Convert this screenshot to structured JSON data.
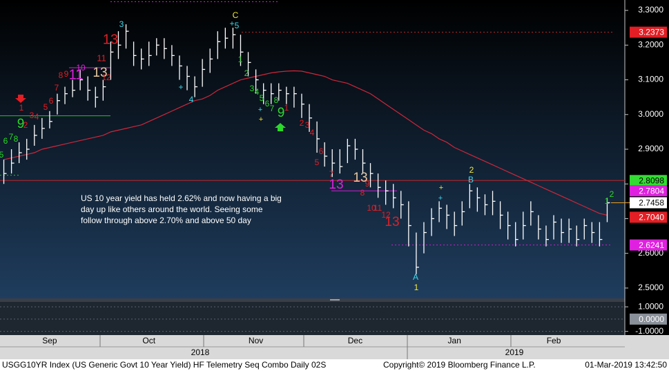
{
  "chart_data": [
    {
      "type": "ohlc",
      "categories": [
        null,
        null,
        null,
        null,
        null,
        null,
        "Sep",
        null,
        null,
        null,
        null,
        null,
        null,
        null,
        null,
        null,
        null,
        null,
        null,
        "Oct",
        null,
        null,
        null,
        null,
        null,
        null,
        null,
        null,
        null,
        null,
        null,
        null,
        null,
        "Nov",
        null,
        null,
        null,
        null,
        null,
        null,
        null,
        null,
        null,
        null,
        null,
        null,
        "Dec",
        null,
        null,
        null,
        null,
        null,
        null,
        null,
        null,
        null,
        null,
        null,
        null,
        "Jan",
        null,
        null,
        null,
        null,
        null,
        null,
        null,
        null,
        null,
        null,
        null,
        null,
        "Feb",
        null,
        null,
        null,
        null,
        null,
        null,
        null
      ],
      "year_labels": [
        "2018",
        "2019"
      ],
      "color": "#ffffff",
      "high": [
        2.87,
        2.9,
        2.92,
        2.93,
        2.97,
        2.99,
        3.01,
        3.06,
        3.08,
        3.1,
        3.13,
        3.11,
        3.08,
        3.1,
        3.21,
        3.24,
        3.26,
        3.21,
        3.19,
        3.21,
        3.22,
        3.22,
        3.2,
        3.17,
        3.14,
        3.11,
        3.16,
        3.19,
        3.24,
        3.25,
        3.25,
        3.23,
        3.18,
        3.13,
        3.09,
        3.09,
        3.09,
        3.08,
        3.08,
        3.06,
        3.03,
        2.98,
        2.92,
        2.9,
        2.9,
        2.93,
        2.93,
        2.9,
        2.86,
        2.83,
        2.81,
        2.8,
        2.78,
        2.75,
        2.66,
        2.69,
        2.73,
        2.75,
        2.74,
        2.72,
        2.75,
        2.8,
        2.79,
        2.77,
        2.78,
        2.75,
        2.72,
        2.69,
        2.72,
        2.75,
        2.71,
        2.68,
        2.71,
        2.7,
        2.7,
        2.68,
        2.7,
        2.69,
        2.69,
        2.76
      ],
      "low": [
        2.8,
        2.83,
        2.86,
        2.87,
        2.91,
        2.93,
        2.96,
        3.0,
        3.03,
        3.05,
        3.07,
        3.04,
        3.02,
        3.04,
        3.1,
        3.16,
        3.19,
        3.14,
        3.13,
        3.14,
        3.17,
        3.16,
        3.14,
        3.1,
        3.07,
        3.05,
        3.08,
        3.12,
        3.16,
        3.19,
        3.19,
        3.14,
        3.11,
        3.06,
        3.03,
        3.03,
        3.04,
        3.03,
        3.02,
        2.99,
        2.95,
        2.89,
        2.85,
        2.82,
        2.83,
        2.86,
        2.87,
        2.83,
        2.79,
        2.76,
        2.74,
        2.73,
        2.7,
        2.62,
        2.54,
        2.6,
        2.65,
        2.69,
        2.67,
        2.65,
        2.68,
        2.73,
        2.72,
        2.71,
        2.71,
        2.67,
        2.64,
        2.62,
        2.64,
        2.68,
        2.64,
        2.62,
        2.64,
        2.63,
        2.63,
        2.62,
        2.64,
        2.63,
        2.62,
        2.69
      ],
      "close": [
        2.83,
        2.86,
        2.89,
        2.9,
        2.94,
        2.96,
        2.98,
        3.04,
        3.06,
        3.07,
        3.1,
        3.07,
        3.05,
        3.08,
        3.18,
        3.2,
        3.24,
        3.17,
        3.16,
        3.17,
        3.2,
        3.19,
        3.17,
        3.14,
        3.11,
        3.08,
        3.13,
        3.16,
        3.21,
        3.22,
        3.23,
        3.18,
        3.15,
        3.1,
        3.07,
        3.06,
        3.07,
        3.06,
        3.06,
        3.03,
        2.99,
        2.93,
        2.88,
        2.86,
        2.85,
        2.91,
        2.9,
        2.86,
        2.83,
        2.79,
        2.78,
        2.76,
        2.74,
        2.68,
        2.56,
        2.66,
        2.7,
        2.73,
        2.71,
        2.68,
        2.72,
        2.78,
        2.76,
        2.74,
        2.75,
        2.71,
        2.68,
        2.64,
        2.68,
        2.72,
        2.67,
        2.64,
        2.69,
        2.66,
        2.67,
        2.64,
        2.68,
        2.66,
        2.64,
        2.7458
      ],
      "moving_average": {
        "color": "#d0263a",
        "values": [
          2.87,
          2.875,
          2.88,
          2.885,
          2.89,
          2.9,
          2.905,
          2.91,
          2.915,
          2.92,
          2.925,
          2.93,
          2.935,
          2.94,
          2.95,
          2.955,
          2.96,
          2.965,
          2.97,
          2.98,
          2.99,
          3.0,
          3.01,
          3.02,
          3.03,
          3.04,
          3.045,
          3.055,
          3.07,
          3.08,
          3.09,
          3.1,
          3.105,
          3.11,
          3.115,
          3.12,
          3.123,
          3.125,
          3.126,
          3.125,
          3.12,
          3.115,
          3.11,
          3.1,
          3.095,
          3.09,
          3.08,
          3.07,
          3.06,
          3.045,
          3.03,
          3.015,
          3.0,
          2.985,
          2.97,
          2.955,
          2.945,
          2.93,
          2.92,
          2.905,
          2.895,
          2.885,
          2.875,
          2.865,
          2.855,
          2.845,
          2.835,
          2.825,
          2.815,
          2.805,
          2.795,
          2.785,
          2.775,
          2.765,
          2.755,
          2.745,
          2.735,
          2.725,
          2.715,
          2.71
        ]
      },
      "ylim": [
        2.47,
        3.33
      ],
      "yticks": [
        {
          "value": 3.3,
          "label": "3.3000"
        },
        {
          "value": 3.2,
          "label": "3.2000"
        },
        {
          "value": 3.1,
          "label": "3.1000"
        },
        {
          "value": 3.0,
          "label": "3.0000"
        },
        {
          "value": 2.9,
          "label": "2.9000"
        },
        {
          "value": 2.8,
          "label": "2.8000"
        },
        {
          "value": 2.7,
          "label": "2.7000"
        },
        {
          "value": 2.6,
          "label": "2.6000"
        },
        {
          "value": 2.5,
          "label": "2.5000"
        }
      ],
      "grid": false,
      "levels": [
        {
          "value": 3.2373,
          "color": "#c0282d",
          "style": "dotted"
        },
        {
          "value": 2.8098,
          "color": "#c0282d",
          "style": "solid"
        },
        {
          "value": 2.6241,
          "color": "#d21fd2",
          "style": "dotted"
        },
        {
          "value": 2.9963,
          "color": "#27c227",
          "style": "solid"
        },
        {
          "value": 3.135,
          "color": "#d21fd2",
          "style": "solid"
        },
        {
          "value": 2.78,
          "color": "#d21fd2",
          "style": "solid"
        },
        {
          "value": 2.825,
          "color": "#27c227",
          "style": "dotted"
        },
        {
          "value": 3.325,
          "color": "#d21fd2",
          "style": "dotted"
        }
      ],
      "tags": [
        {
          "value": 3.2373,
          "color": "#e31e24",
          "text_color": "#ffffff"
        },
        {
          "value": 2.8098,
          "color": "#33dd33",
          "text_color": "#000000"
        },
        {
          "value": 2.7804,
          "color": "#e020e0",
          "text_color": "#ffffff"
        },
        {
          "value": 2.7458,
          "color": "#ffffff",
          "text_color": "#000000"
        },
        {
          "value": 2.704,
          "label": "2.7040",
          "color": "#e31e24",
          "text_color": "#ffffff"
        },
        {
          "value": 2.6241,
          "color": "#e020e0",
          "text_color": "#ffffff"
        }
      ],
      "annotations": [
        {
          "text": "5",
          "color": "#2bd92b"
        },
        {
          "text": "6",
          "color": "#2bd92b"
        },
        {
          "text": "7",
          "color": "#2bd92b"
        },
        {
          "text": "8",
          "color": "#2bd92b"
        },
        {
          "text": "9",
          "color": "#2bd92b"
        },
        {
          "text": "1",
          "color": "#e31e24"
        },
        {
          "text": "2",
          "color": "#e31e24"
        },
        {
          "text": "3",
          "color": "#e31e24"
        },
        {
          "text": "4",
          "color": "#e31e24"
        },
        {
          "text": "5",
          "color": "#e31e24"
        },
        {
          "text": "6",
          "color": "#e31e24"
        },
        {
          "text": "7",
          "color": "#e31e24"
        },
        {
          "text": "8",
          "color": "#e31e24"
        },
        {
          "text": "9",
          "color": "#e31e24"
        },
        {
          "text": "10",
          "color": "#e020e0"
        },
        {
          "text": "11",
          "color": "#e020e0"
        },
        {
          "text": "13",
          "color": "#e8c9a0"
        },
        {
          "text": "12",
          "color": "#e31e24"
        },
        {
          "text": "11",
          "color": "#e31e24"
        },
        {
          "text": "13",
          "color": "#e31e24"
        },
        {
          "text": "3",
          "color": "#3fd8ea"
        },
        {
          "text": "+",
          "color": "#3fd8ea"
        },
        {
          "text": "4",
          "color": "#3fd8ea"
        },
        {
          "text": "C",
          "color": "#f2e93a"
        },
        {
          "text": "+",
          "color": "#3fd8ea"
        },
        {
          "text": "5",
          "color": "#3fd8ea"
        },
        {
          "text": "1",
          "color": "#2bd92b"
        },
        {
          "text": "2",
          "color": "#2bd92b"
        },
        {
          "text": "3",
          "color": "#2bd92b"
        },
        {
          "text": "4",
          "color": "#2bd92b"
        },
        {
          "text": "5",
          "color": "#2bd92b"
        },
        {
          "text": "6",
          "color": "#2bd92b"
        },
        {
          "text": "7",
          "color": "#2bd92b"
        },
        {
          "text": "8",
          "color": "#2bd92b"
        },
        {
          "text": "9",
          "color": "#2bd92b"
        },
        {
          "text": "+",
          "color": "#3fd8ea"
        },
        {
          "text": "+",
          "color": "#f2e93a"
        },
        {
          "text": "1",
          "color": "#e31e24"
        },
        {
          "text": "2",
          "color": "#e31e24"
        },
        {
          "text": "3",
          "color": "#e31e24"
        },
        {
          "text": "4",
          "color": "#e31e24"
        },
        {
          "text": "6",
          "color": "#e31e24"
        },
        {
          "text": "5",
          "color": "#e31e24"
        },
        {
          "text": "7",
          "color": "#e31e24"
        },
        {
          "text": "13",
          "color": "#e020e0"
        },
        {
          "text": "13",
          "color": "#e8c9a0"
        },
        {
          "text": "9",
          "color": "#e31e24"
        },
        {
          "text": "8",
          "color": "#e31e24"
        },
        {
          "text": "10",
          "color": "#e31e24"
        },
        {
          "text": "11",
          "color": "#e31e24"
        },
        {
          "text": "12",
          "color": "#e31e24"
        },
        {
          "text": "13",
          "color": "#e31e24"
        },
        {
          "text": "A",
          "color": "#3fd8ea"
        },
        {
          "text": "1",
          "color": "#f2e93a"
        },
        {
          "text": "+",
          "color": "#f2e93a"
        },
        {
          "text": "+",
          "color": "#3fd8ea"
        },
        {
          "text": "2",
          "color": "#f2e93a"
        },
        {
          "text": "B",
          "color": "#3fd8ea"
        },
        {
          "text": "1",
          "color": "#2bd92b"
        },
        {
          "text": "2",
          "color": "#2bd92b"
        }
      ]
    },
    {
      "type": "indicator",
      "ylim": [
        -1.3,
        1.4
      ],
      "yticks": [
        {
          "value": 1,
          "label": "1.0000"
        },
        {
          "value": -1,
          "label": "-1.0000"
        }
      ],
      "tags": [
        {
          "value": 0,
          "label": "0.0000",
          "color": "#8a9099",
          "text_color": "#ffffff"
        }
      ]
    }
  ],
  "note": {
    "lines": [
      "US 10 year yield has held 2.62% and now having a big",
      "day up like others around the world.  Seeing some",
      "follow through above 2.70% and above 50 day"
    ]
  },
  "footer": {
    "security": "USGG10YR Index (US Generic Govt 10 Year Yield) HF Telemetry Seq Combo  Daily 02S",
    "copyright": "Copyright© 2019 Bloomberg Finance L.P.",
    "timestamp": "01-Mar-2019 13:42:50"
  }
}
